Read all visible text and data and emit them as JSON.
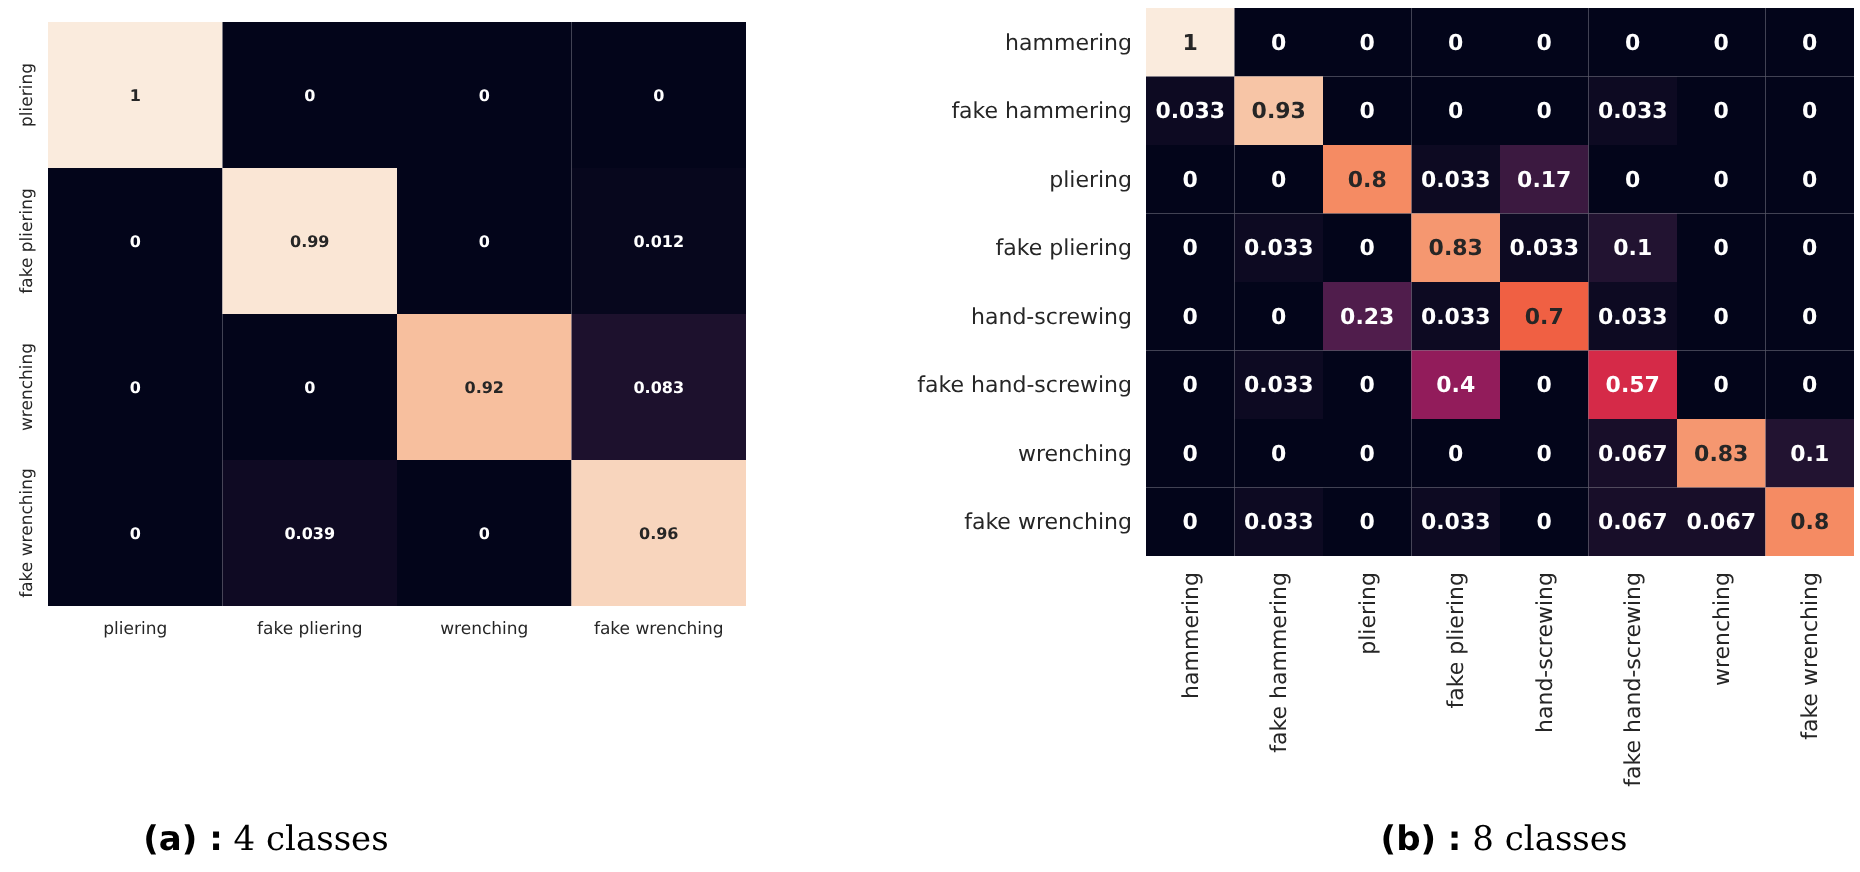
{
  "chart_data": [
    {
      "type": "heatmap",
      "title": "(a) : 4 classes",
      "categories": [
        "pliering",
        "fake pliering",
        "wrenching",
        "fake wrenching"
      ],
      "y_categories": [
        "pliering",
        "fake pliering",
        "wrenching",
        "fake wrenching"
      ],
      "data_labels": true,
      "cells": [
        [
          1,
          0,
          0,
          0
        ],
        [
          0,
          0.99,
          0,
          0.012
        ],
        [
          0,
          0,
          0.92,
          0.083
        ],
        [
          0,
          0.039,
          0,
          0.96
        ]
      ]
    },
    {
      "type": "heatmap",
      "title": "(b) : 8 classes",
      "categories": [
        "hammering",
        "fake hammering",
        "pliering",
        "fake pliering",
        "hand-screwing",
        "fake hand-screwing",
        "wrenching",
        "fake wrenching"
      ],
      "y_categories": [
        "hammering",
        "fake hammering",
        "pliering",
        "fake pliering",
        "hand-screwing",
        "fake hand-screwing",
        "wrenching",
        "fake wrenching"
      ],
      "data_labels": true,
      "cells": [
        [
          1,
          0,
          0,
          0,
          0,
          0,
          0,
          0
        ],
        [
          0.033,
          0.93,
          0,
          0,
          0,
          0.033,
          0,
          0
        ],
        [
          0,
          0,
          0.8,
          0.033,
          0.17,
          0,
          0,
          0
        ],
        [
          0,
          0.033,
          0,
          0.83,
          0.033,
          0.1,
          0,
          0
        ],
        [
          0,
          0,
          0.23,
          0.033,
          0.7,
          0.033,
          0,
          0
        ],
        [
          0,
          0.033,
          0,
          0.4,
          0,
          0.57,
          0,
          0
        ],
        [
          0,
          0,
          0,
          0,
          0,
          0.067,
          0.83,
          0.1
        ],
        [
          0,
          0.033,
          0,
          0.033,
          0,
          0.067,
          0.067,
          0.8
        ]
      ]
    }
  ]
}
